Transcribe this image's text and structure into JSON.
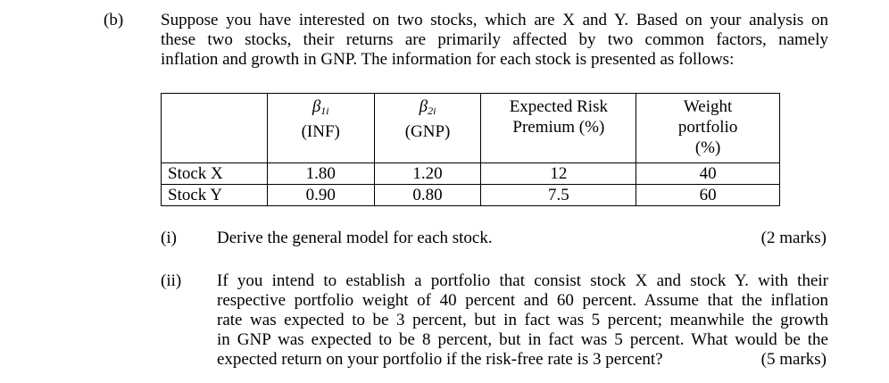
{
  "part_label": "(b)",
  "intro_lines": [
    "Suppose you have interested on two stocks, which are X and Y. Based on your analysis on",
    "these two stocks, their returns are primarily affected by two common factors, namely",
    "inflation and growth in GNP. The information for each stock is presented as follows:"
  ],
  "table": {
    "headers": [
      {
        "beta": "β",
        "sub": "1i",
        "label": "(INF)"
      },
      {
        "beta": "β",
        "sub": "2i",
        "label": "(GNP)"
      },
      {
        "line1": "Expected Risk",
        "line2": "Premium (%)"
      },
      {
        "line1": "Weight",
        "line2": "portfolio",
        "line3": "(%)"
      }
    ],
    "rows": [
      {
        "name": "Stock X",
        "beta1": "1.80",
        "beta2": "1.20",
        "premium": "12",
        "weight": "40"
      },
      {
        "name": "Stock Y",
        "beta1": "0.90",
        "beta2": "0.80",
        "premium": "7.5",
        "weight": "60"
      }
    ]
  },
  "questions": [
    {
      "num": "(i)",
      "lines": [
        "Derive the general model for each stock."
      ],
      "marks": "(2 marks)"
    },
    {
      "num": "(ii)",
      "lines": [
        "If you intend to establish a portfolio that consist stock X and stock Y. with their",
        "respective portfolio weight of 40 percent and 60 percent. Assume that the inflation",
        "rate was expected to be 3 percent, but in fact was 5 percent; meanwhile the growth",
        "in GNP was expected to be 8 percent, but in fact was 5 percent. What would be the",
        "expected return on your portfolio if the risk-free rate is 3 percent?"
      ],
      "marks": "(5 marks)"
    }
  ]
}
